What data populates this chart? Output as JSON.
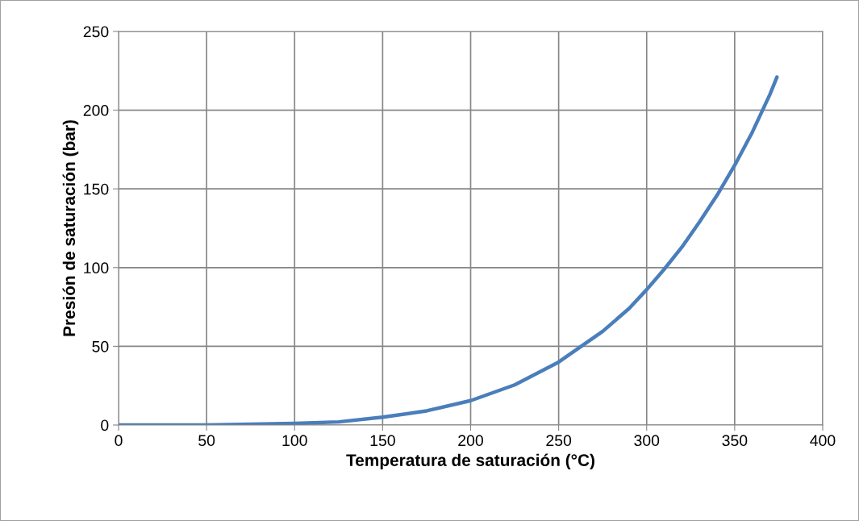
{
  "chart_data": {
    "type": "line",
    "xlabel": "Temperatura de saturación (°C)",
    "ylabel": "Presión de saturación (bar)",
    "x": [
      0,
      25,
      50,
      75,
      100,
      125,
      150,
      175,
      200,
      225,
      250,
      275,
      290,
      300,
      310,
      320,
      330,
      340,
      350,
      360,
      370,
      374
    ],
    "series": [
      {
        "color": "#4a7ebb",
        "values": [
          0,
          0,
          0,
          0.5,
          1,
          2,
          5,
          9,
          15.5,
          25.5,
          40,
          59.5,
          74,
          86,
          99,
          113,
          129,
          146,
          165,
          186,
          210,
          221
        ]
      }
    ],
    "xlim": [
      0,
      400
    ],
    "xticks": [
      0,
      50,
      100,
      150,
      200,
      250,
      300,
      350,
      400
    ],
    "ylim": [
      0,
      250
    ],
    "yticks": [
      0,
      50,
      100,
      150,
      200,
      250
    ],
    "grid": true,
    "marker": "none",
    "line_style": "solid",
    "legend": false
  }
}
